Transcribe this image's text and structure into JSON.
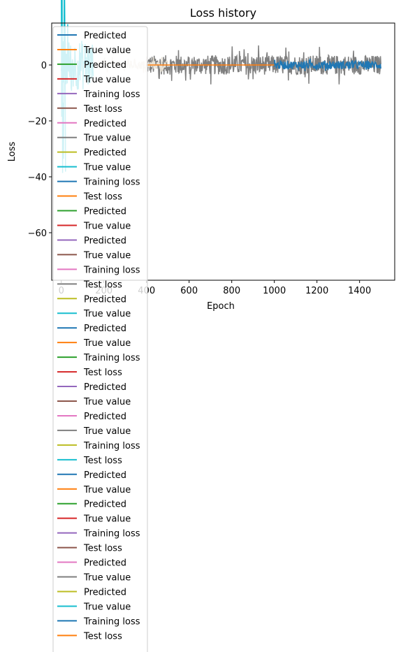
{
  "chart_data": {
    "type": "line",
    "title": "Loss history",
    "xlabel": "Epoch",
    "ylabel": "Loss",
    "xlim": [
      -45,
      1565
    ],
    "ylim": [
      -77,
      15
    ],
    "xticks": [
      0,
      200,
      400,
      600,
      800,
      1000,
      1200,
      1400
    ],
    "yticks": [
      0,
      -20,
      -40,
      -60
    ],
    "grid": false,
    "legend_location": "upper-left",
    "colors": [
      "#1f77b4",
      "#ff7f0e",
      "#2ca02c",
      "#d62728",
      "#9467bd",
      "#8c564b",
      "#e377c2",
      "#7f7f7f",
      "#bcbd22",
      "#17becf"
    ],
    "legend": [
      "Predicted",
      "True value",
      "Predicted",
      "True value",
      "Training loss",
      "Test loss",
      "Predicted",
      "True value",
      "Predicted",
      "True value",
      "Training loss",
      "Test loss",
      "Predicted",
      "True value",
      "Predicted",
      "True value",
      "Training loss",
      "Test loss",
      "Predicted",
      "True value",
      "Predicted",
      "True value",
      "Training loss",
      "Test loss",
      "Predicted",
      "True value",
      "Predicted",
      "True value",
      "Training loss",
      "Test loss",
      "Predicted",
      "True value",
      "Predicted",
      "True value",
      "Training loss",
      "Test loss",
      "Predicted",
      "True value",
      "Predicted",
      "True value",
      "Training loss",
      "Test loss"
    ],
    "series": [
      {
        "color": "#7f7f7f",
        "x_range": [
          400,
          1500
        ],
        "center": 0,
        "amplitude": 3.5,
        "spike_max": 7
      },
      {
        "color": "#e8e2d6",
        "x_range": [
          0,
          500
        ],
        "center": 0,
        "amplitude": 1.5,
        "spike_max": 3
      },
      {
        "color": "#17becf",
        "x_range": [
          0,
          150
        ],
        "center": 0,
        "amplitude": 9,
        "spike_max": 15
      },
      {
        "color": "#17becf",
        "x_range": [
          0,
          20
        ],
        "center": 0,
        "amplitude": 40,
        "spike_max": 75
      },
      {
        "color": "#1f77b4",
        "x_range": [
          1000,
          1500
        ],
        "center": 0,
        "amplitude": 1.5,
        "spike_max": 2.5
      },
      {
        "color": "#ff7f0e",
        "x_range": [
          400,
          1000
        ],
        "center": 0,
        "amplitude": 0,
        "spike_max": 0
      }
    ]
  }
}
